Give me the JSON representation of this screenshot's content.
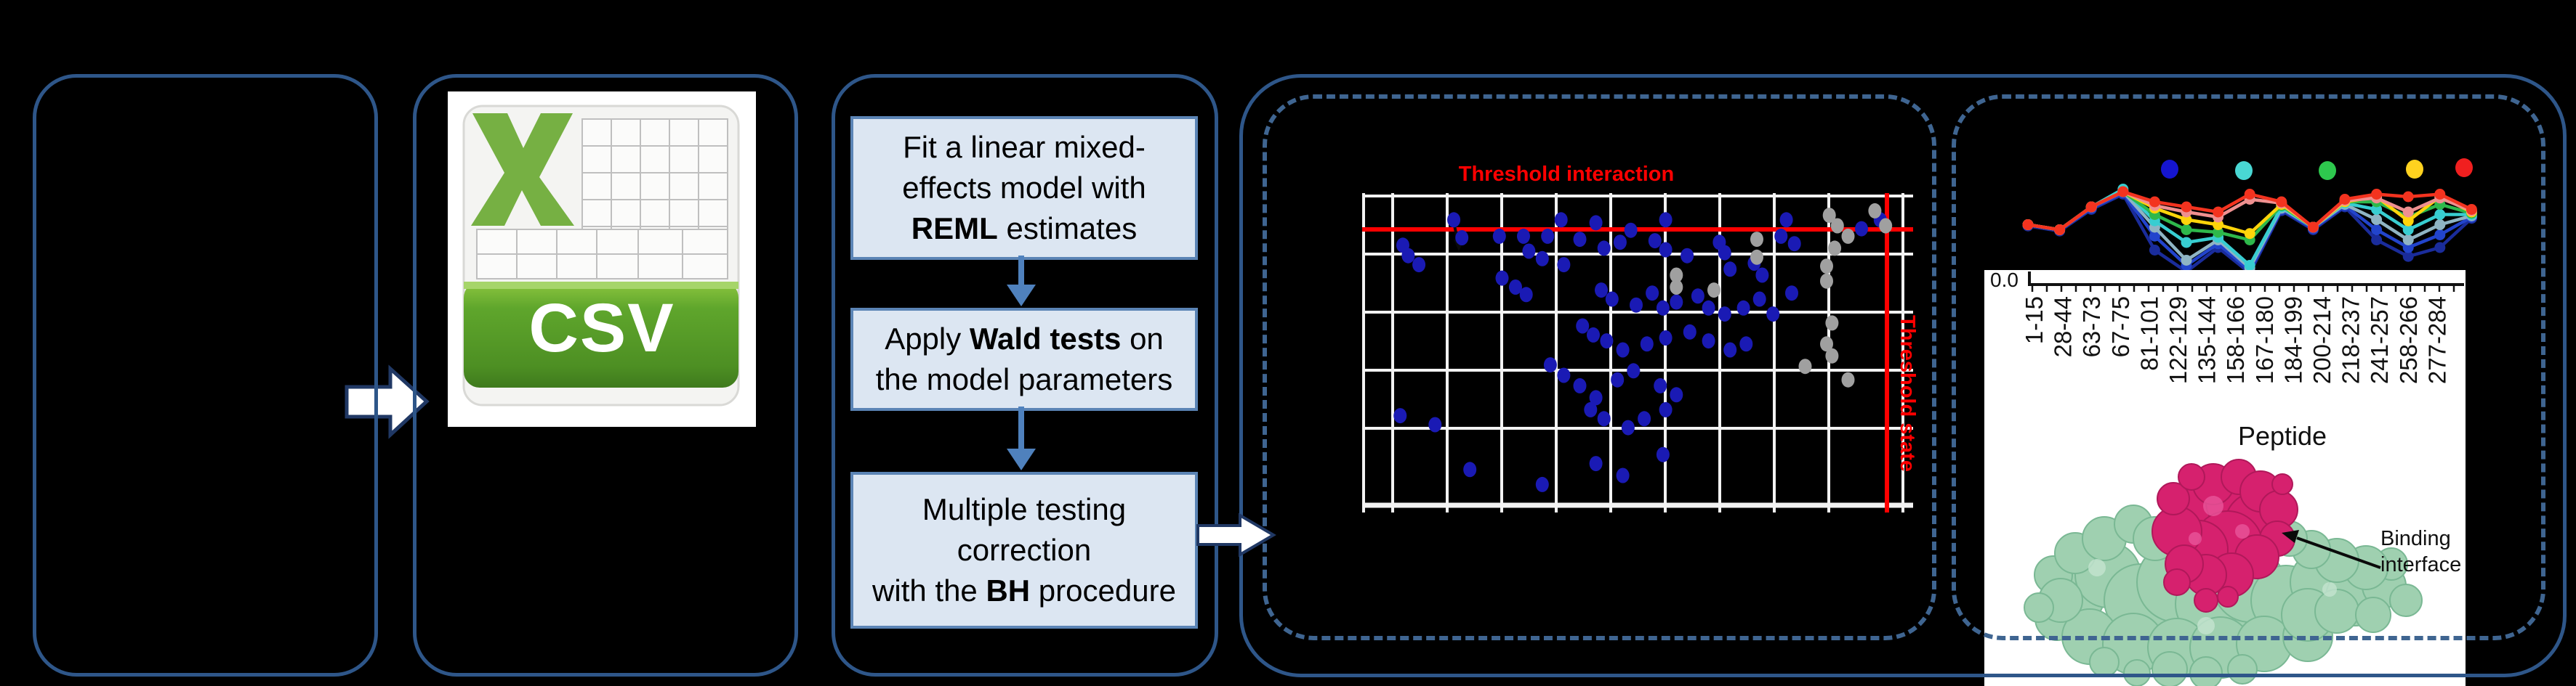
{
  "panels": {
    "input_box": {
      "note": "empty rounded box"
    },
    "csv": {
      "label": "CSV"
    },
    "workflow": {
      "steps": [
        {
          "lines": [
            [
              {
                "t": "Fit a linear mixed-",
                "b": false
              }
            ],
            [
              {
                "t": "effects model with",
                "b": false
              }
            ],
            [
              {
                "t": "REML",
                "b": true
              },
              {
                "t": " estimates",
                "b": false
              }
            ]
          ]
        },
        {
          "lines": [
            [
              {
                "t": "Apply ",
                "b": false
              },
              {
                "t": "Wald tests",
                "b": true
              },
              {
                "t": " on",
                "b": false
              }
            ],
            [
              {
                "t": "the model parameters",
                "b": false
              }
            ]
          ]
        },
        {
          "lines": [
            [
              {
                "t": "Multiple testing",
                "b": false
              }
            ],
            [
              {
                "t": "correction",
                "b": false
              }
            ],
            [
              {
                "t": "with the ",
                "b": false
              },
              {
                "t": "BH",
                "b": true
              },
              {
                "t": " procedure",
                "b": false
              }
            ]
          ]
        }
      ]
    },
    "structure": {
      "binding_interface_label": "Binding interface"
    }
  },
  "colors": {
    "background": "#000000",
    "box_border": "#2e5689",
    "dashed_border": "#3f6591",
    "step_fill": "#dce6f2",
    "step_border": "#5b84b5",
    "flow_arrow": "#4f81bd",
    "block_arrow_fill": "#ffffff",
    "block_arrow_border": "#203864",
    "threshold_red": "#ff0000",
    "scatter_blue": "#1a1ab4",
    "scatter_gray": "#a0a0a0",
    "csv_green": "#76b043",
    "protein_green": "#9fd0b0",
    "protein_pink": "#d6216e"
  },
  "chart_data": [
    {
      "type": "scatter",
      "title": "Threshold interaction",
      "side_label": "Threshold state",
      "xlabel": "",
      "ylabel": "",
      "axes_note": "axis tick labels not visible (black on black); point coordinates normalized 0-1, y measured downward from plot top",
      "grid": "white gridlines on black background",
      "threshold_line_y": 0.1,
      "threshold_line_x": 0.967,
      "series": [
        {
          "name": "blue points",
          "color": "#1a1ab4",
          "points": [
            [
              0.16,
              0.065
            ],
            [
              0.36,
              0.065
            ],
            [
              0.425,
              0.075
            ],
            [
              0.49,
              0.1
            ],
            [
              0.555,
              0.065
            ],
            [
              0.78,
              0.065
            ],
            [
              0.955,
              0.065
            ],
            [
              0.92,
              0.095
            ],
            [
              0.175,
              0.125
            ],
            [
              0.245,
              0.12
            ],
            [
              0.29,
              0.12
            ],
            [
              0.335,
              0.12
            ],
            [
              0.395,
              0.13
            ],
            [
              0.065,
              0.15
            ],
            [
              0.075,
              0.185
            ],
            [
              0.095,
              0.215
            ],
            [
              0.3,
              0.17
            ],
            [
              0.325,
              0.195
            ],
            [
              0.365,
              0.215
            ],
            [
              0.44,
              0.16
            ],
            [
              0.47,
              0.14
            ],
            [
              0.535,
              0.135
            ],
            [
              0.555,
              0.165
            ],
            [
              0.595,
              0.185
            ],
            [
              0.655,
              0.14
            ],
            [
              0.665,
              0.175
            ],
            [
              0.675,
              0.23
            ],
            [
              0.72,
              0.21
            ],
            [
              0.735,
              0.25
            ],
            [
              0.77,
              0.12
            ],
            [
              0.795,
              0.145
            ],
            [
              0.25,
              0.26
            ],
            [
              0.275,
              0.29
            ],
            [
              0.295,
              0.315
            ],
            [
              0.435,
              0.3
            ],
            [
              0.455,
              0.33
            ],
            [
              0.5,
              0.35
            ],
            [
              0.53,
              0.31
            ],
            [
              0.55,
              0.36
            ],
            [
              0.575,
              0.34
            ],
            [
              0.615,
              0.32
            ],
            [
              0.635,
              0.36
            ],
            [
              0.665,
              0.38
            ],
            [
              0.7,
              0.36
            ],
            [
              0.73,
              0.33
            ],
            [
              0.755,
              0.38
            ],
            [
              0.79,
              0.31
            ],
            [
              0.4,
              0.42
            ],
            [
              0.42,
              0.45
            ],
            [
              0.445,
              0.47
            ],
            [
              0.475,
              0.5
            ],
            [
              0.52,
              0.48
            ],
            [
              0.555,
              0.46
            ],
            [
              0.6,
              0.44
            ],
            [
              0.635,
              0.47
            ],
            [
              0.675,
              0.5
            ],
            [
              0.705,
              0.48
            ],
            [
              0.34,
              0.55
            ],
            [
              0.365,
              0.585
            ],
            [
              0.395,
              0.62
            ],
            [
              0.425,
              0.66
            ],
            [
              0.465,
              0.6
            ],
            [
              0.495,
              0.57
            ],
            [
              0.545,
              0.62
            ],
            [
              0.575,
              0.65
            ],
            [
              0.06,
              0.72
            ],
            [
              0.125,
              0.75
            ],
            [
              0.415,
              0.7
            ],
            [
              0.44,
              0.73
            ],
            [
              0.485,
              0.76
            ],
            [
              0.515,
              0.73
            ],
            [
              0.555,
              0.7
            ],
            [
              0.19,
              0.9
            ],
            [
              0.325,
              0.95
            ],
            [
              0.425,
              0.88
            ],
            [
              0.475,
              0.92
            ],
            [
              0.55,
              0.85
            ]
          ]
        },
        {
          "name": "gray points",
          "color": "#a0a0a0",
          "points": [
            [
              0.945,
              0.035
            ],
            [
              0.965,
              0.085
            ],
            [
              0.86,
              0.05
            ],
            [
              0.875,
              0.085
            ],
            [
              0.895,
              0.12
            ],
            [
              0.87,
              0.16
            ],
            [
              0.725,
              0.13
            ],
            [
              0.725,
              0.19
            ],
            [
              0.855,
              0.22
            ],
            [
              0.855,
              0.27
            ],
            [
              0.575,
              0.25
            ],
            [
              0.575,
              0.29
            ],
            [
              0.645,
              0.3
            ],
            [
              0.865,
              0.41
            ],
            [
              0.855,
              0.48
            ],
            [
              0.865,
              0.52
            ],
            [
              0.815,
              0.555
            ],
            [
              0.895,
              0.6
            ]
          ]
        }
      ]
    },
    {
      "type": "line",
      "categories": [
        "1-15",
        "28-44",
        "63-73",
        "67-75",
        "81-101",
        "122-129",
        "135-144",
        "158-166",
        "167-180",
        "184-199",
        "200-214",
        "218-237",
        "241-257",
        "258-266",
        "277-284"
      ],
      "xlabel": "Peptide",
      "ytick_label": "0.0",
      "legend_dot_colors": [
        "#1515d0",
        "#49d7d3",
        "#2ec84e",
        "#ffd21f",
        "#f01f1f"
      ],
      "values_note": "relative deuterium uptake, normalized 0-1 (estimated from pixel heights; no numeric axis visible)",
      "series": [
        {
          "name": "navy",
          "color": "#1a2c9b",
          "values": [
            0.41,
            0.37,
            0.54,
            0.66,
            0.22,
            0.05,
            0.24,
            0.04,
            0.53,
            0.38,
            0.56,
            0.3,
            0.17,
            0.24,
            0.47
          ]
        },
        {
          "name": "blue",
          "color": "#2244cc",
          "values": [
            0.42,
            0.38,
            0.55,
            0.67,
            0.33,
            0.1,
            0.27,
            0.06,
            0.54,
            0.39,
            0.57,
            0.38,
            0.24,
            0.34,
            0.48
          ]
        },
        {
          "name": "steel",
          "color": "#8fb4c4",
          "values": [
            0.42,
            0.38,
            0.56,
            0.68,
            0.4,
            0.14,
            0.3,
            0.08,
            0.55,
            0.4,
            0.58,
            0.46,
            0.3,
            0.42,
            0.49
          ]
        },
        {
          "name": "cyan",
          "color": "#38cdd1",
          "values": [
            0.42,
            0.38,
            0.56,
            0.7,
            0.45,
            0.28,
            0.32,
            0.1,
            0.56,
            0.4,
            0.59,
            0.54,
            0.38,
            0.5,
            0.5
          ]
        },
        {
          "name": "green",
          "color": "#2eb84b",
          "values": [
            0.42,
            0.38,
            0.56,
            0.68,
            0.5,
            0.38,
            0.36,
            0.3,
            0.57,
            0.4,
            0.6,
            0.6,
            0.48,
            0.58,
            0.51
          ]
        },
        {
          "name": "yellow",
          "color": "#ffd40a",
          "values": [
            0.42,
            0.38,
            0.56,
            0.68,
            0.55,
            0.46,
            0.42,
            0.35,
            0.58,
            0.4,
            0.6,
            0.64,
            0.45,
            0.64,
            0.52
          ]
        },
        {
          "name": "salmon",
          "color": "#ef9090",
          "values": [
            0.42,
            0.38,
            0.56,
            0.68,
            0.57,
            0.52,
            0.48,
            0.62,
            0.59,
            0.4,
            0.61,
            0.63,
            0.52,
            0.63,
            0.53
          ]
        },
        {
          "name": "red",
          "color": "#f3331f",
          "values": [
            0.42,
            0.38,
            0.56,
            0.68,
            0.6,
            0.56,
            0.52,
            0.66,
            0.6,
            0.4,
            0.62,
            0.66,
            0.64,
            0.66,
            0.54
          ]
        }
      ]
    }
  ]
}
